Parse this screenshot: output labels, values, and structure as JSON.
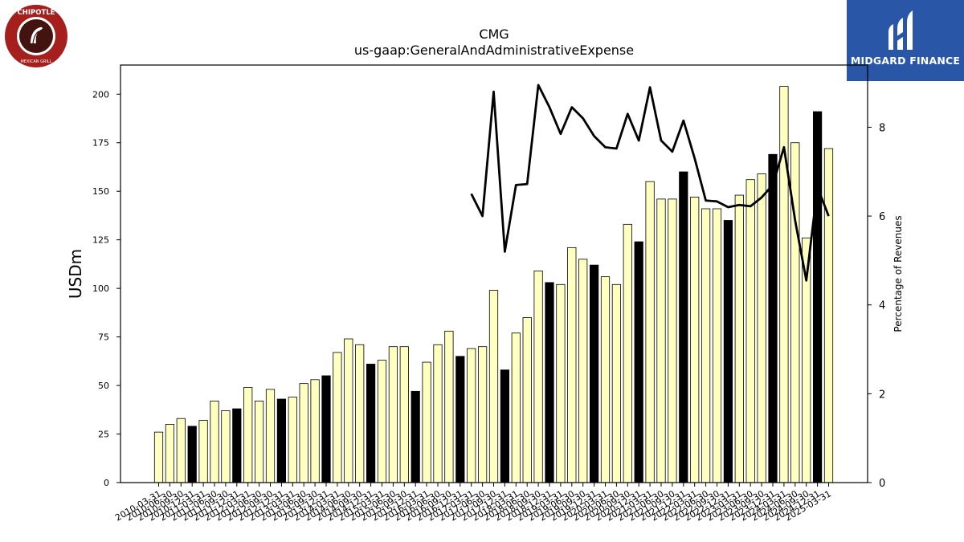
{
  "chart_data": {
    "type": "bar",
    "title": "CMG",
    "subtitle": "us-gaap:GeneralAndAdministrativeExpense",
    "ylabel": "USDm",
    "y2label": "Percentage of Revenues",
    "ylim": [
      0,
      215
    ],
    "y2lim": [
      0,
      9.4
    ],
    "yticks": [
      0,
      25,
      50,
      75,
      100,
      125,
      150,
      175,
      200
    ],
    "y2ticks": [
      0,
      2,
      4,
      6,
      8
    ],
    "grid": false,
    "colors": {
      "bar": "#ffffc0",
      "bar_highlight": "#000000",
      "edge": "#000000",
      "line": "#000000"
    },
    "categories": [
      "2010-03-31",
      "2010-06-30",
      "2010-09-30",
      "2010-12-31",
      "2011-03-31",
      "2011-06-30",
      "2011-09-30",
      "2011-12-31",
      "2012-03-31",
      "2012-06-30",
      "2012-09-30",
      "2012-12-31",
      "2013-03-31",
      "2013-06-30",
      "2013-09-30",
      "2013-12-31",
      "2014-03-31",
      "2014-06-30",
      "2014-09-30",
      "2014-12-31",
      "2015-03-31",
      "2015-06-30",
      "2015-09-30",
      "2015-12-31",
      "2016-03-31",
      "2016-06-30",
      "2016-09-30",
      "2016-12-31",
      "2017-03-31",
      "2017-06-30",
      "2017-09-30",
      "2017-12-31",
      "2018-03-31",
      "2018-06-30",
      "2018-09-30",
      "2018-12-31",
      "2019-03-31",
      "2019-06-30",
      "2019-09-30",
      "2019-12-31",
      "2020-03-31",
      "2020-06-30",
      "2020-09-30",
      "2020-12-31",
      "2021-03-31",
      "2021-06-30",
      "2021-09-30",
      "2021-12-31",
      "2022-03-31",
      "2022-06-30",
      "2022-09-30",
      "2022-12-31",
      "2023-03-31",
      "2023-06-30",
      "2023-09-30",
      "2023-12-31",
      "2024-03-31",
      "2024-06-30",
      "2024-09-30",
      "2024-12-31",
      "2025-03-31"
    ],
    "highlight": [
      false,
      false,
      false,
      true,
      false,
      false,
      false,
      true,
      false,
      false,
      false,
      true,
      false,
      false,
      false,
      true,
      false,
      false,
      false,
      true,
      false,
      false,
      false,
      true,
      false,
      false,
      false,
      true,
      false,
      false,
      false,
      true,
      false,
      false,
      false,
      true,
      false,
      false,
      false,
      true,
      false,
      false,
      false,
      true,
      false,
      false,
      false,
      true,
      false,
      false,
      false,
      true,
      false,
      false,
      false,
      true,
      false,
      false,
      false,
      true,
      false
    ],
    "series": [
      {
        "type": "bar",
        "axis": "left",
        "values": [
          26,
          30,
          33,
          29,
          32,
          42,
          37,
          38,
          49,
          42,
          48,
          43,
          44,
          51,
          53,
          55,
          67,
          74,
          71,
          61,
          63,
          70,
          70,
          47,
          62,
          71,
          78,
          65,
          69,
          70,
          99,
          58,
          77,
          85,
          109,
          103,
          102,
          121,
          115,
          112,
          106,
          102,
          133,
          124,
          155,
          146,
          146,
          160,
          147,
          141,
          141,
          135,
          148,
          156,
          159,
          169,
          204,
          175,
          126,
          191,
          172
        ]
      },
      {
        "type": "line",
        "axis": "right",
        "values": [
          null,
          null,
          null,
          null,
          null,
          null,
          null,
          null,
          null,
          null,
          null,
          null,
          null,
          null,
          null,
          null,
          null,
          null,
          null,
          null,
          null,
          null,
          null,
          null,
          null,
          null,
          null,
          null,
          6.5,
          6.0,
          8.8,
          5.2,
          6.7,
          6.72,
          8.95,
          8.45,
          7.85,
          8.45,
          8.2,
          7.8,
          7.55,
          7.52,
          8.3,
          7.7,
          8.9,
          7.7,
          7.45,
          8.15,
          7.3,
          6.35,
          6.33,
          6.2,
          6.25,
          6.22,
          6.42,
          6.7,
          7.55,
          5.9,
          4.55,
          6.65,
          6.0
        ]
      }
    ]
  }
}
